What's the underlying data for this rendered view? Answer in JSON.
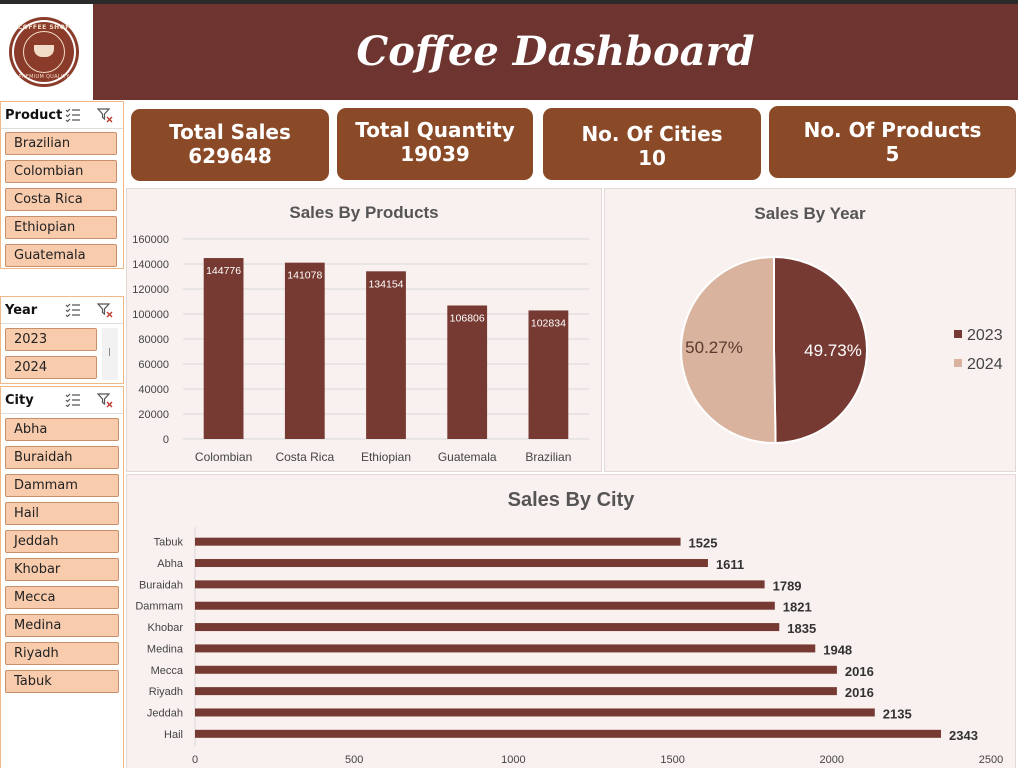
{
  "header": {
    "title": "Coffee Dashboard",
    "logo_top_text": "COFFEE SHOP",
    "logo_bottom_text": "PREMIUM QUALITY"
  },
  "slicers": {
    "product": {
      "title": "Product",
      "items": [
        "Brazilian",
        "Colombian",
        "Costa Rica",
        "Ethiopian",
        "Guatemala"
      ]
    },
    "year": {
      "title": "Year",
      "items": [
        "2023",
        "2024"
      ]
    },
    "city": {
      "title": "City",
      "items": [
        "Abha",
        "Buraidah",
        "Dammam",
        "Hail",
        "Jeddah",
        "Khobar",
        "Mecca",
        "Medina",
        "Riyadh",
        "Tabuk"
      ]
    }
  },
  "kpis": [
    {
      "label": "Total Sales",
      "value": "629648"
    },
    {
      "label": "Total Quantity",
      "value": "19039"
    },
    {
      "label": "No. Of Cities",
      "value": "10"
    },
    {
      "label": "No. Of Products",
      "value": "5"
    }
  ],
  "colors": {
    "header_bg": "#6e3530",
    "bar": "#773a32",
    "kpi_bg": "#8b4a27",
    "slicer_item": "#f8cbad",
    "pie_2023": "#773a32",
    "pie_2024": "#d9b39e",
    "panel_bg": "#f8f1ef"
  },
  "chart_data": [
    {
      "type": "bar",
      "title": "Sales By Products",
      "categories": [
        "Colombian",
        "Costa Rica",
        "Ethiopian",
        "Guatemala",
        "Brazilian"
      ],
      "values": [
        144776,
        141078,
        134154,
        106806,
        102834
      ],
      "ylim": [
        0,
        160000
      ],
      "yticks": [
        0,
        20000,
        40000,
        60000,
        80000,
        100000,
        120000,
        140000,
        160000
      ],
      "grid": true
    },
    {
      "type": "pie",
      "title": "Sales By Year",
      "labels": [
        "2023",
        "2024"
      ],
      "values": [
        49.73,
        50.27
      ],
      "value_labels": [
        "49.73%",
        "50.27%"
      ],
      "legend": "right"
    },
    {
      "type": "bar",
      "orientation": "horizontal",
      "title": "Sales By City",
      "categories": [
        "Tabuk",
        "Abha",
        "Buraidah",
        "Dammam",
        "Khobar",
        "Medina",
        "Mecca",
        "Riyadh",
        "Jeddah",
        "Hail"
      ],
      "values": [
        1525,
        1611,
        1789,
        1821,
        1835,
        1948,
        2016,
        2016,
        2135,
        2343
      ],
      "xlim": [
        0,
        2500
      ],
      "xticks": [
        0,
        500,
        1000,
        1500,
        2000,
        2500
      ]
    }
  ]
}
